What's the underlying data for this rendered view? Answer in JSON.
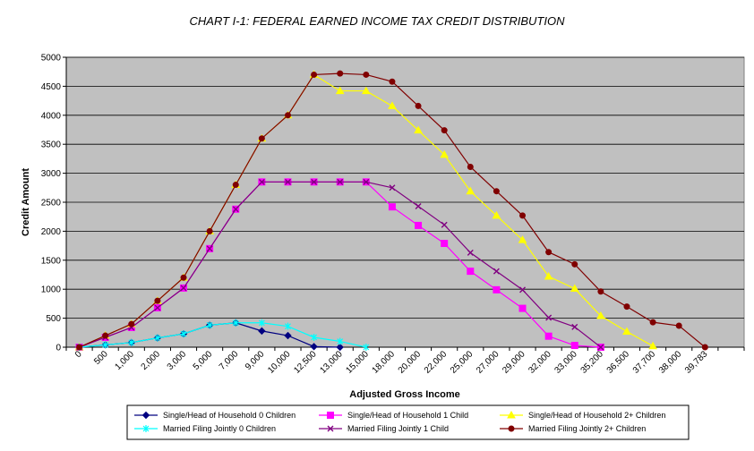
{
  "chart_data": {
    "type": "line",
    "title": "CHART I-1: FEDERAL  EARNED  INCOME TAX CREDIT DISTRIBUTION",
    "xlabel": "Adjusted Gross Income",
    "ylabel": "Credit Amount",
    "ylim": [
      0,
      5000
    ],
    "yticks": [
      "0",
      "500",
      "1000",
      "1500",
      "2000",
      "2500",
      "3000",
      "3500",
      "4000",
      "4500",
      "5000"
    ],
    "categories": [
      "0",
      "500",
      "1,000",
      "2,000",
      "3,000",
      "5,000",
      "7,000",
      "9,000",
      "10,000",
      "12,500",
      "13,000",
      "15,000",
      "18,000",
      "20,000",
      "22,000",
      "25,000",
      "27,000",
      "29,000",
      "32,000",
      "33,000",
      "35,200",
      "36,500",
      "37,700",
      "38,000",
      "39,783"
    ],
    "grid": true,
    "legend_position": "bottom",
    "series": [
      {
        "name": "Single/Head of Household 0 Children",
        "color": "#000080",
        "marker": "diamond",
        "values": [
          0,
          40,
          80,
          160,
          230,
          380,
          420,
          280,
          200,
          10,
          0,
          null,
          null,
          null,
          null,
          null,
          null,
          null,
          null,
          null,
          null,
          null,
          null,
          null,
          null
        ]
      },
      {
        "name": "Single/Head of Household 1 Child",
        "color": "#ff00ff",
        "marker": "square",
        "values": [
          0,
          170,
          340,
          680,
          1020,
          1700,
          2380,
          2850,
          2850,
          2850,
          2850,
          2850,
          2420,
          2100,
          1790,
          1310,
          990,
          670,
          190,
          30,
          0,
          null,
          null,
          null,
          null
        ]
      },
      {
        "name": "Single/Head of Household 2+ Children",
        "color": "#ffff00",
        "marker": "triangle",
        "values": [
          0,
          200,
          400,
          800,
          1200,
          2000,
          2800,
          3600,
          4000,
          4700,
          4420,
          4420,
          4160,
          3740,
          3320,
          2690,
          2270,
          1850,
          1220,
          1010,
          540,
          270,
          20,
          null,
          null
        ]
      },
      {
        "name": "Married Filing Jointly 0 Children",
        "color": "#00ffff",
        "marker": "star",
        "values": [
          0,
          40,
          80,
          160,
          230,
          380,
          420,
          420,
          360,
          170,
          100,
          0,
          null,
          null,
          null,
          null,
          null,
          null,
          null,
          null,
          null,
          null,
          null,
          null,
          null
        ]
      },
      {
        "name": "Married Filing Jointly 1 Child",
        "color": "#800080",
        "marker": "x",
        "values": [
          0,
          170,
          340,
          680,
          1020,
          1700,
          2380,
          2850,
          2850,
          2850,
          2850,
          2850,
          2750,
          2430,
          2110,
          1630,
          1310,
          990,
          510,
          350,
          0,
          null,
          null,
          null,
          null
        ]
      },
      {
        "name": "Married Filing Jointly 2+ Children",
        "color": "#800000",
        "marker": "circle",
        "values": [
          0,
          200,
          400,
          800,
          1200,
          2000,
          2800,
          3600,
          4000,
          4700,
          4720,
          4700,
          4580,
          4160,
          3740,
          3110,
          2690,
          2270,
          1640,
          1430,
          960,
          700,
          430,
          370,
          0
        ]
      }
    ]
  }
}
